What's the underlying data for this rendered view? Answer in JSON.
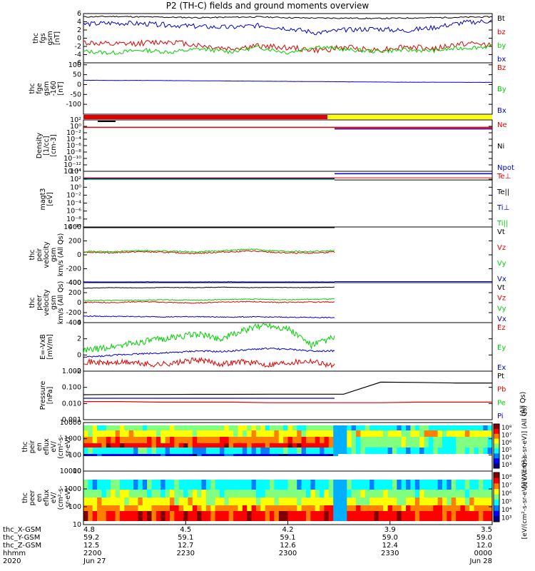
{
  "title": "P2 (TH-C) fields and ground moments overview",
  "colors": {
    "black": "#000000",
    "red": "#e00000",
    "green": "#00d000",
    "blue": "#0000cc",
    "yellow": "#ffff00"
  },
  "chart_data": [
    {
      "type": "line",
      "panel": "fgs_gsm",
      "ylabel_lines": [
        "thc",
        "fgs",
        "gsm",
        "[nT]"
      ],
      "ylim": [
        -6,
        6
      ],
      "yticks": [
        "6",
        "4",
        "2",
        "0",
        "-2",
        "-4",
        "-6"
      ],
      "legend": [
        "Bt",
        "bz",
        "by",
        "bx"
      ],
      "series": [
        {
          "name": "Bt",
          "color": "black",
          "values": [
            5.2,
            5.3,
            5.2,
            5.1,
            5.0,
            5.1,
            5.2,
            5.0,
            4.9,
            4.9,
            4.8,
            4.9,
            5.0,
            5.1,
            5.2
          ]
        },
        {
          "name": "bz",
          "color": "red",
          "values": [
            -1.0,
            -1.6,
            -1.2,
            -0.8,
            -1.8,
            -2.6,
            -1.9,
            -2.3,
            -3.0,
            -2.2,
            -2.9,
            -2.1,
            -2.6,
            -1.3,
            -1.6
          ]
        },
        {
          "name": "by",
          "color": "green",
          "values": [
            -3.2,
            -3.6,
            -2.9,
            -3.4,
            -2.6,
            -3.3,
            -2.2,
            -3.5,
            -2.0,
            -2.8,
            -3.2,
            -2.9,
            -3.0,
            -2.4,
            -2.0
          ]
        },
        {
          "name": "bx",
          "color": "blue",
          "values": [
            3.4,
            3.7,
            3.5,
            3.2,
            2.8,
            2.6,
            3.1,
            2.4,
            1.3,
            2.0,
            2.3,
            1.8,
            2.6,
            3.8,
            4.2
          ]
        }
      ]
    },
    {
      "type": "line",
      "panel": "fge_gsm",
      "ylabel_lines": [
        "thc",
        "fge",
        "gsm",
        "-160",
        "[nT]"
      ],
      "ylim": [
        -150,
        110
      ],
      "yticks": [
        "100",
        "50",
        "0",
        "-50",
        "-100"
      ],
      "legend": [
        "Bz",
        "By",
        "Bx"
      ],
      "series": [
        {
          "name": "Bx",
          "color": "blue",
          "values": [
            22,
            21,
            21,
            20,
            19,
            18,
            17,
            16,
            15,
            14,
            13,
            12,
            12,
            11,
            11
          ]
        }
      ]
    },
    {
      "type": "line",
      "panel": "density",
      "ylabel_lines": [
        "Density",
        "[1/cc]",
        "[cm-3]"
      ],
      "yticks": [
        "10²",
        "10⁰",
        "10⁻²",
        "10⁻⁴",
        "10⁻⁶",
        "10⁻⁸",
        "10⁻¹⁰",
        "10⁻¹²",
        "10⁻¹⁴"
      ],
      "legend": [
        "Ne",
        "Ni",
        "Npot"
      ]
    },
    {
      "type": "line",
      "panel": "temperature",
      "ylabel_lines": [
        "magt3",
        "[eV]"
      ],
      "yticks": [
        "10⁴",
        "10²",
        "10⁰",
        "10⁻²",
        "10⁻⁴",
        "10⁻⁶",
        "10⁻⁸",
        "10⁻¹⁰"
      ],
      "legend": [
        "Te⊥",
        "Te||",
        "Ti⊥",
        "Ti||"
      ]
    },
    {
      "type": "line",
      "panel": "peir_velocity",
      "ylabel_lines": [
        "thc",
        "peir",
        "velocity",
        "gsm",
        "km/s (All Qs)"
      ],
      "ylim": [
        -400,
        400
      ],
      "yticks": [
        "400",
        "200",
        "0",
        "-200",
        "-400"
      ],
      "legend": [
        "Vt",
        "Vz",
        "Vy",
        "Vx"
      ],
      "series": [
        {
          "name": "Vt",
          "color": "black",
          "values": [
            400,
            405,
            398,
            402,
            400,
            395,
            403,
            400,
            402,
            398
          ]
        },
        {
          "name": "Vz",
          "color": "red",
          "values": [
            40,
            30,
            45,
            35,
            20,
            40,
            55,
            30,
            25,
            40
          ]
        },
        {
          "name": "Vy",
          "color": "green",
          "values": [
            50,
            45,
            60,
            55,
            40,
            60,
            80,
            55,
            50,
            60
          ]
        },
        {
          "name": "Vx",
          "color": "blue",
          "values": [
            -395,
            -400,
            -392,
            -398,
            -396,
            -390,
            -398,
            -394,
            -396,
            -395
          ]
        }
      ]
    },
    {
      "type": "line",
      "panel": "peer_velocity",
      "ylabel_lines": [
        "thc",
        "peer",
        "velocity",
        "gsm",
        "km/s (All Qs)"
      ],
      "ylim": [
        -400,
        400
      ],
      "yticks": [
        "400",
        "200",
        "0",
        "-200",
        "-400"
      ],
      "legend": [
        "Vt",
        "Vz",
        "Vy",
        "Vx"
      ],
      "series": [
        {
          "name": "Vt",
          "color": "black",
          "values": [
            290,
            300,
            295,
            305,
            300,
            310,
            300,
            305,
            300,
            310
          ]
        },
        {
          "name": "Vz",
          "color": "red",
          "values": [
            10,
            0,
            20,
            5,
            -10,
            15,
            20,
            5,
            10,
            15
          ]
        },
        {
          "name": "Vy",
          "color": "green",
          "values": [
            40,
            45,
            50,
            55,
            50,
            60,
            70,
            60,
            65,
            70
          ]
        },
        {
          "name": "Vx",
          "color": "blue",
          "values": [
            -270,
            -275,
            -280,
            -285,
            -280,
            -290,
            -285,
            -290,
            -295,
            -300
          ]
        }
      ]
    },
    {
      "type": "line",
      "panel": "efield",
      "ylabel_lines": [
        "E=-VxB",
        "[mV/m]"
      ],
      "ylim": [
        -2,
        4
      ],
      "yticks": [
        "4",
        "2",
        "0",
        "-2"
      ],
      "legend": [
        "Ez",
        "Ey",
        "Ex"
      ],
      "series": [
        {
          "name": "Ez",
          "color": "red",
          "values": [
            -0.8,
            -1.0,
            -0.9,
            -1.2,
            -1.0,
            -0.6,
            -1.1,
            -0.8,
            -1.2,
            -0.9,
            -0.7,
            -1.4
          ]
        },
        {
          "name": "Ey",
          "color": "green",
          "values": [
            0.5,
            0.9,
            1.4,
            1.8,
            2.2,
            2.6,
            2.0,
            3.0,
            3.8,
            3.2,
            1.2,
            2.2
          ]
        },
        {
          "name": "Ex",
          "color": "blue",
          "values": [
            -0.3,
            -0.1,
            0.1,
            0.2,
            0.3,
            0.5,
            0.4,
            0.6,
            0.8,
            0.7,
            0.5,
            0.5
          ]
        }
      ]
    },
    {
      "type": "line",
      "panel": "pressure",
      "ylabel_lines": [
        "Pressure",
        "[nPa]"
      ],
      "yticks": [
        "1.000",
        "0.100",
        "0.010",
        "0.001"
      ],
      "legend": [
        "Pt",
        "Pb",
        "Pe",
        "Pi"
      ],
      "right_label": "(All Qs)",
      "series": [
        {
          "name": "Pt",
          "color": "black",
          "values": [
            0.035,
            0.036,
            0.036,
            0.037,
            0.037,
            0.038,
            0.038,
            0.038,
            0.25,
            0.24,
            0.22,
            0.22
          ]
        },
        {
          "name": "Pb",
          "color": "red",
          "values": [
            0.012,
            0.012,
            0.011,
            0.011,
            0.011,
            0.01,
            0.01,
            0.01,
            0.01,
            0.011,
            0.011,
            0.011
          ]
        },
        {
          "name": "Pi",
          "color": "blue",
          "values": [
            0.02,
            0.02,
            0.02,
            0.02,
            0.02,
            0.02,
            0.02,
            0.02
          ]
        }
      ]
    },
    {
      "type": "heatmap",
      "panel": "peir_spectrogram",
      "ylabel_lines": [
        "thc",
        "peir",
        "en",
        "eflux",
        "eV/",
        "(cm²-s-",
        "sr-eV)"
      ],
      "yticks": [
        "10000",
        "1000",
        "100",
        "10"
      ],
      "colorbar_label": "[eV/(cm²-s-sr-eV)] (All Qs)",
      "colorbar_ticks": [
        "10⁸",
        "10⁷",
        "10⁶",
        "10⁵",
        "10⁴",
        "10³"
      ]
    },
    {
      "type": "heatmap",
      "panel": "peer_spectrogram",
      "ylabel_lines": [
        "thc",
        "peer",
        "en",
        "eflux",
        "eV/",
        "(cm²-s-",
        "sr-eV)"
      ],
      "yticks": [
        "10000",
        "1000",
        "100",
        "10"
      ],
      "colorbar_label": "[eV/(cm²-s-sr-eV)] (All Qs)",
      "colorbar_ticks": [
        "10⁸",
        "10⁷",
        "10⁶",
        "10⁵",
        "10⁴",
        "10³"
      ]
    }
  ],
  "xaxis": {
    "row_labels": [
      "thc_X-GSM",
      "thc_Y-GSM",
      "thc_Z-GSM",
      "hhmm",
      "2020"
    ],
    "columns": [
      [
        "4.8",
        "59.2",
        "12.5",
        "2200",
        "Jun 27"
      ],
      [
        "4.5",
        "59.1",
        "12.7",
        "2230",
        ""
      ],
      [
        "4.2",
        "59.1",
        "12.6",
        "2300",
        ""
      ],
      [
        "3.9",
        "59.0",
        "12.4",
        "2330",
        ""
      ],
      [
        "3.5",
        "59.0",
        "12.0",
        "0000",
        "Jun 28"
      ]
    ]
  }
}
